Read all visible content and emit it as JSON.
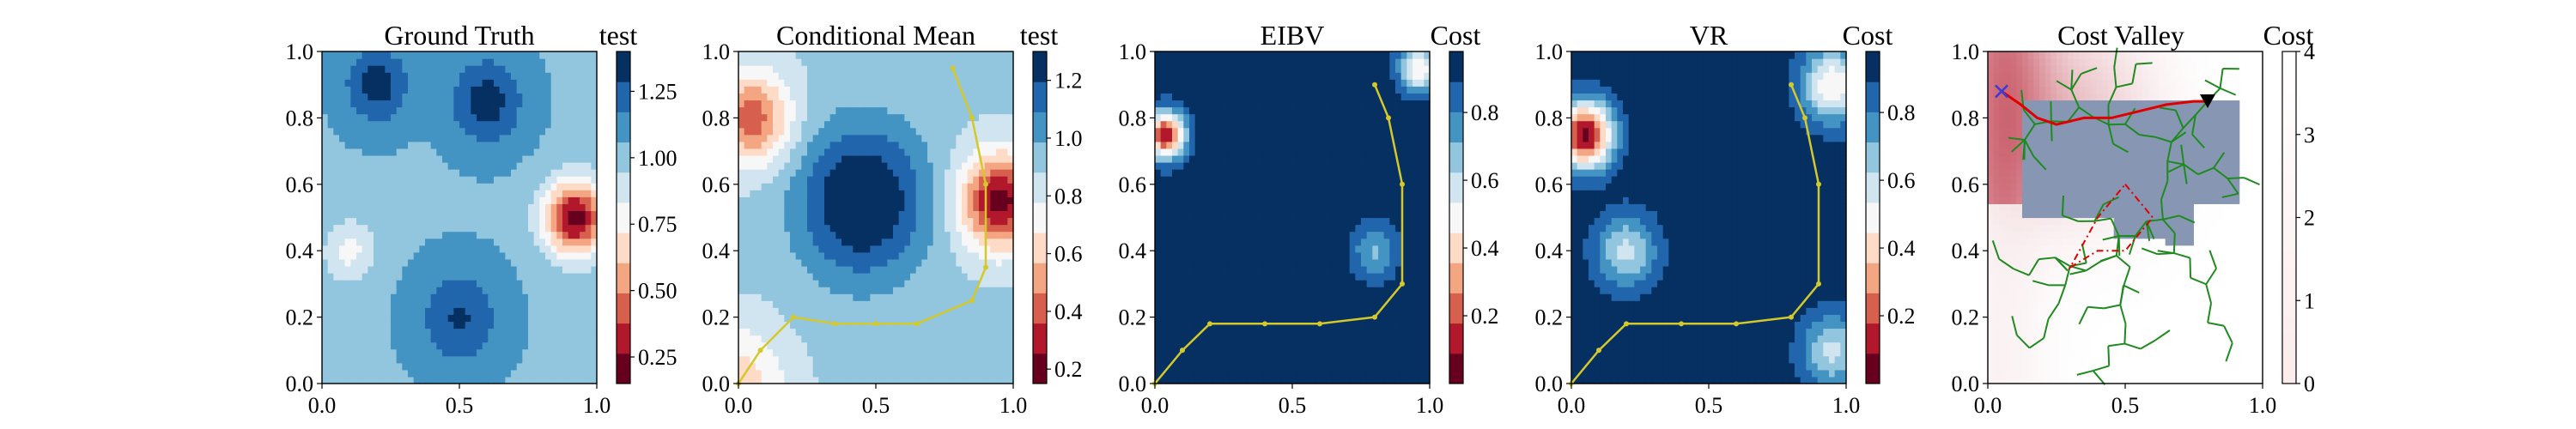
{
  "colors": {
    "rdbu_levels": [
      "#67001f",
      "#b2182b",
      "#d6604d",
      "#f4a582",
      "#fddbc7",
      "#f7f7f7",
      "#d1e5f0",
      "#92c5de",
      "#4393c3",
      "#2166ac",
      "#053061"
    ],
    "path_yellow": "#d4c82a",
    "tree_green": "#1f8a1f",
    "best_path_red": "#e00000",
    "polygon_red": "#e00000",
    "obstacle_blue": "#8797b3",
    "start_cross_blue": "#3b3bd6",
    "target_black": "#000000"
  },
  "chart_data": [
    {
      "type": "heatmap",
      "title": "Ground Truth",
      "colorbar_label": "test",
      "colorbar_ticks": [
        "0.25",
        "0.50",
        "0.75",
        "1.00",
        "1.25"
      ],
      "colorbar_tick_values": [
        0.25,
        0.5,
        0.75,
        1.0,
        1.25
      ],
      "colorbar_range": [
        0.15,
        1.4
      ],
      "colormap": "RdBu",
      "xlim": [
        0,
        1
      ],
      "ylim": [
        0,
        1
      ],
      "xticks": [
        "0.0",
        "0.5",
        "1.0"
      ],
      "yticks": [
        "0.0",
        "0.2",
        "0.4",
        "0.6",
        "0.8",
        "1.0"
      ],
      "field_bumps": [
        {
          "x": 0.2,
          "y": 0.9,
          "sigma": 0.08,
          "amp": 0.3
        },
        {
          "x": 0.6,
          "y": 0.85,
          "sigma": 0.09,
          "amp": 0.3
        },
        {
          "x": 0.92,
          "y": 0.5,
          "sigma": 0.08,
          "amp": -0.85
        },
        {
          "x": 0.5,
          "y": 0.2,
          "sigma": 0.1,
          "amp": 0.25
        },
        {
          "x": 0.1,
          "y": 0.4,
          "sigma": 0.07,
          "amp": -0.25
        }
      ],
      "field_base": 1.05
    },
    {
      "type": "heatmap",
      "title": "Conditional Mean",
      "colorbar_label": "test",
      "colorbar_ticks": [
        "0.2",
        "0.4",
        "0.6",
        "0.8",
        "1.0",
        "1.2"
      ],
      "colorbar_tick_values": [
        0.2,
        0.4,
        0.6,
        0.8,
        1.0,
        1.2
      ],
      "colorbar_range": [
        0.15,
        1.3
      ],
      "colormap": "RdBu",
      "xlim": [
        0,
        1
      ],
      "ylim": [
        0,
        1
      ],
      "xticks": [
        "0.0",
        "0.5",
        "1.0"
      ],
      "yticks": [
        "0.0",
        "0.2",
        "0.4",
        "0.6",
        "0.8",
        "1.0"
      ],
      "field_bumps": [
        {
          "x": 0.45,
          "y": 0.55,
          "sigma": 0.16,
          "amp": 0.45
        },
        {
          "x": 0.95,
          "y": 0.55,
          "sigma": 0.1,
          "amp": -0.7
        },
        {
          "x": 0.05,
          "y": 0.8,
          "sigma": 0.1,
          "amp": -0.5
        },
        {
          "x": 0.0,
          "y": 0.0,
          "sigma": 0.12,
          "amp": -0.3
        }
      ],
      "field_base": 0.9,
      "path": [
        [
          0.0,
          0.0
        ],
        [
          0.08,
          0.1
        ],
        [
          0.2,
          0.2
        ],
        [
          0.35,
          0.18
        ],
        [
          0.5,
          0.18
        ],
        [
          0.65,
          0.18
        ],
        [
          0.85,
          0.25
        ],
        [
          0.9,
          0.35
        ],
        [
          0.9,
          0.6
        ],
        [
          0.85,
          0.8
        ],
        [
          0.78,
          0.95
        ]
      ]
    },
    {
      "type": "heatmap",
      "title": "EIBV",
      "colorbar_label": "Cost",
      "colorbar_ticks": [
        "0.2",
        "0.4",
        "0.6",
        "0.8"
      ],
      "colorbar_tick_values": [
        0.2,
        0.4,
        0.6,
        0.8
      ],
      "colorbar_range": [
        0.0,
        0.98
      ],
      "colormap": "RdBu",
      "xlim": [
        0,
        1
      ],
      "ylim": [
        0,
        1
      ],
      "xticks": [
        "0.0",
        "0.5",
        "1.0"
      ],
      "yticks": [
        "0.0",
        "0.2",
        "0.4",
        "0.6",
        "0.8",
        "1.0"
      ],
      "field_bumps": [
        {
          "x": 0.04,
          "y": 0.75,
          "sigma": 0.05,
          "amp": -0.85
        },
        {
          "x": 0.96,
          "y": 0.95,
          "sigma": 0.05,
          "amp": -0.5
        },
        {
          "x": 0.8,
          "y": 0.4,
          "sigma": 0.06,
          "amp": -0.25
        }
      ],
      "field_base": 0.95,
      "path": [
        [
          0.0,
          0.0
        ],
        [
          0.1,
          0.1
        ],
        [
          0.2,
          0.18
        ],
        [
          0.4,
          0.18
        ],
        [
          0.6,
          0.18
        ],
        [
          0.8,
          0.2
        ],
        [
          0.9,
          0.3
        ],
        [
          0.9,
          0.6
        ],
        [
          0.85,
          0.8
        ],
        [
          0.8,
          0.9
        ]
      ]
    },
    {
      "type": "heatmap",
      "title": "VR",
      "colorbar_label": "Cost",
      "colorbar_ticks": [
        "0.2",
        "0.4",
        "0.6",
        "0.8"
      ],
      "colorbar_tick_values": [
        0.2,
        0.4,
        0.6,
        0.8
      ],
      "colorbar_range": [
        0.0,
        0.98
      ],
      "colormap": "RdBu",
      "xlim": [
        0,
        1
      ],
      "ylim": [
        0,
        1
      ],
      "xticks": [
        "0.0",
        "0.5",
        "1.0"
      ],
      "yticks": [
        "0.0",
        "0.2",
        "0.4",
        "0.6",
        "0.8",
        "1.0"
      ],
      "field_bumps": [
        {
          "x": 0.05,
          "y": 0.75,
          "sigma": 0.07,
          "amp": -0.9
        },
        {
          "x": 0.2,
          "y": 0.4,
          "sigma": 0.08,
          "amp": -0.35
        },
        {
          "x": 0.95,
          "y": 0.9,
          "sigma": 0.08,
          "amp": -0.5
        },
        {
          "x": 0.95,
          "y": 0.1,
          "sigma": 0.08,
          "amp": -0.35
        }
      ],
      "field_base": 0.95,
      "path": [
        [
          0.0,
          0.0
        ],
        [
          0.1,
          0.1
        ],
        [
          0.2,
          0.18
        ],
        [
          0.4,
          0.18
        ],
        [
          0.6,
          0.18
        ],
        [
          0.8,
          0.2
        ],
        [
          0.9,
          0.3
        ],
        [
          0.9,
          0.6
        ],
        [
          0.85,
          0.8
        ],
        [
          0.8,
          0.9
        ]
      ]
    },
    {
      "type": "heatmap",
      "title": "Cost Valley",
      "colorbar_label": "Cost",
      "colorbar_ticks": [
        "0",
        "1",
        "2",
        "3",
        "4"
      ],
      "colorbar_tick_values": [
        0,
        1,
        2,
        3,
        4
      ],
      "colorbar_range": [
        0,
        4
      ],
      "colormap": "white-red",
      "xlim": [
        0,
        1
      ],
      "ylim": [
        0,
        1
      ],
      "xticks": [
        "0.0",
        "0.5",
        "1.0"
      ],
      "yticks": [
        "0.0",
        "0.2",
        "0.4",
        "0.6",
        "0.8",
        "1.0"
      ],
      "start": [
        0.05,
        0.88
      ],
      "target": [
        0.8,
        0.85
      ],
      "best_path": [
        [
          0.05,
          0.88
        ],
        [
          0.12,
          0.84
        ],
        [
          0.18,
          0.8
        ],
        [
          0.25,
          0.78
        ],
        [
          0.35,
          0.8
        ],
        [
          0.45,
          0.8
        ],
        [
          0.55,
          0.82
        ],
        [
          0.65,
          0.84
        ],
        [
          0.75,
          0.85
        ],
        [
          0.8,
          0.85
        ]
      ],
      "polygon": [
        [
          0.5,
          0.6
        ],
        [
          0.6,
          0.5
        ],
        [
          0.5,
          0.4
        ],
        [
          0.4,
          0.4
        ],
        [
          0.3,
          0.35
        ],
        [
          0.4,
          0.5
        ],
        [
          0.5,
          0.6
        ]
      ],
      "tree_seed": 7
    }
  ]
}
